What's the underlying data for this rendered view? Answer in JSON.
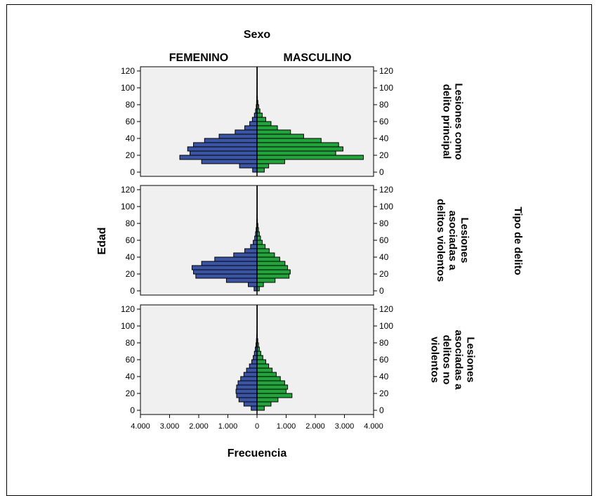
{
  "chart_data": {
    "type": "bar",
    "subtype": "population-pyramid",
    "colors": {
      "femenino": "#3b55a5",
      "masculino": "#23a33c",
      "panel_bg": "#f0f0f0"
    },
    "legend_title": "Sexo",
    "column_labels": [
      "FEMENINO",
      "MASCULINO"
    ],
    "ylabel": "Edad",
    "xlabel": "Frecuencia",
    "facet_title": "Tipo de delito",
    "ylim": [
      -5,
      125
    ],
    "y_ticks": [
      0,
      20,
      40,
      60,
      80,
      100,
      120
    ],
    "xlim": [
      0,
      4000
    ],
    "x_ticks": [
      4000,
      3000,
      2000,
      1000,
      0,
      1000,
      2000,
      3000,
      4000
    ],
    "x_tick_labels": [
      "4.000",
      "3.000",
      "2.000",
      "1.000",
      "0",
      "1.000",
      "2.000",
      "3.000",
      "4.000"
    ],
    "age_bins": [
      0,
      5,
      10,
      15,
      20,
      25,
      30,
      35,
      40,
      45,
      50,
      55,
      60,
      65,
      70,
      75,
      80,
      85,
      90,
      95,
      100,
      105,
      110,
      115,
      120
    ],
    "panels": [
      {
        "label_lines": [
          "Lesiones como",
          "delito principal"
        ],
        "femenino": [
          150,
          600,
          1900,
          2650,
          2300,
          2380,
          2180,
          1800,
          1300,
          750,
          420,
          250,
          160,
          90,
          50,
          25,
          15,
          10,
          5,
          5,
          3,
          2,
          2,
          1,
          1
        ],
        "masculino": [
          250,
          400,
          950,
          3650,
          2700,
          2950,
          2800,
          2200,
          1600,
          1150,
          700,
          480,
          300,
          180,
          100,
          60,
          30,
          15,
          10,
          5,
          3,
          2,
          2,
          1,
          1
        ]
      },
      {
        "label_lines": [
          "Lesiones",
          "asociadas a",
          "delitos violentos"
        ],
        "femenino": [
          100,
          300,
          1050,
          2100,
          2180,
          2230,
          1900,
          1450,
          800,
          420,
          220,
          130,
          80,
          50,
          30,
          15,
          10,
          5,
          3,
          2,
          1,
          1,
          1,
          1,
          1
        ],
        "masculino": [
          80,
          220,
          620,
          1100,
          1140,
          1050,
          960,
          780,
          600,
          420,
          280,
          180,
          120,
          80,
          50,
          30,
          15,
          10,
          5,
          3,
          2,
          1,
          1,
          1,
          1
        ],
        "label_offset": true
      },
      {
        "label_lines": [
          "Lesiones",
          "asociadas a",
          "delitos no",
          "violentos"
        ],
        "femenino": [
          200,
          450,
          620,
          700,
          720,
          700,
          650,
          560,
          450,
          360,
          260,
          180,
          130,
          90,
          60,
          35,
          20,
          10,
          5,
          3,
          2,
          1,
          1,
          1,
          1
        ],
        "masculino": [
          250,
          480,
          720,
          1200,
          1000,
          1050,
          950,
          800,
          660,
          520,
          400,
          300,
          200,
          130,
          80,
          50,
          25,
          12,
          6,
          3,
          2,
          1,
          1,
          1,
          1
        ],
        "label_offset": false
      }
    ]
  }
}
